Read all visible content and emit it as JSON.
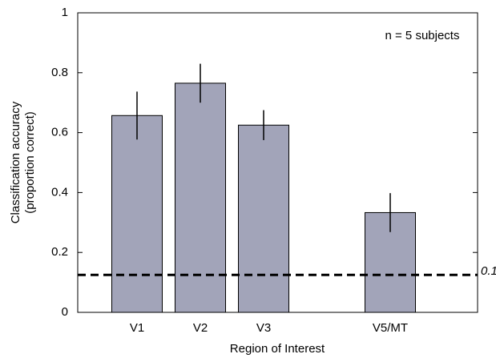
{
  "chart_data": {
    "type": "bar",
    "x_label": "Region of Interest",
    "y_label": [
      "Classification accuracy",
      "(proportion correct)"
    ],
    "annotation": "n = 5 subjects",
    "categories": [
      "V1",
      "V2",
      "V3",
      null,
      "V5/MT"
    ],
    "values": [
      0.657,
      0.765,
      0.625,
      null,
      0.333
    ],
    "errors": [
      0.08,
      0.065,
      0.05,
      null,
      0.065
    ],
    "color": "#a2a4b9",
    "reference_line": 0.125,
    "ylim": [
      0,
      1
    ],
    "yticks": [
      0,
      0.2,
      0.4,
      0.6,
      0.8,
      1
    ]
  }
}
